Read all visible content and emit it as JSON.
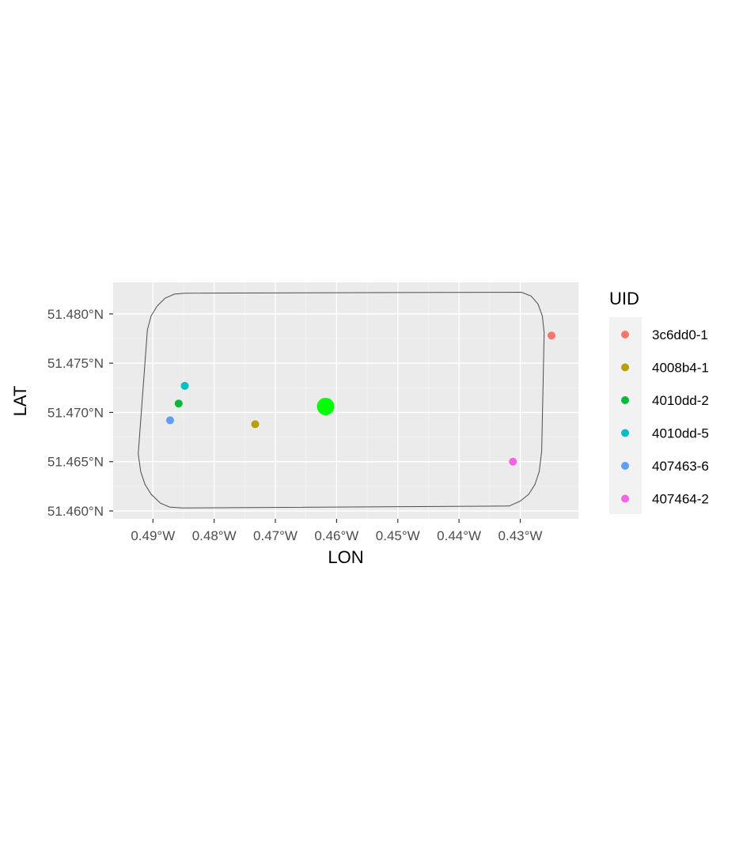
{
  "chart_data": {
    "type": "scatter",
    "xlabel": "LON",
    "ylabel": "LAT",
    "xlim": [
      -0.4965,
      -0.4205
    ],
    "ylim": [
      51.4592,
      51.4832
    ],
    "x_ticks": [
      -0.49,
      -0.48,
      -0.47,
      -0.46,
      -0.45,
      -0.44,
      -0.43
    ],
    "x_tick_labels": [
      "0.49°W",
      "0.48°W",
      "0.47°W",
      "0.46°W",
      "0.45°W",
      "0.44°W",
      "0.43°W"
    ],
    "y_ticks": [
      51.46,
      51.465,
      51.47,
      51.475,
      51.48
    ],
    "y_tick_labels": [
      "51.460°N",
      "51.465°N",
      "51.470°N",
      "51.475°N",
      "51.480°N"
    ],
    "grid": true,
    "legend_title": "UID",
    "legend_position": "right",
    "series": [
      {
        "name": "3c6dd0-1",
        "color": "#F8766D",
        "x": -0.4249,
        "y": 51.4778
      },
      {
        "name": "4008b4-1",
        "color": "#B79F00",
        "x": -0.4733,
        "y": 51.4688
      },
      {
        "name": "4010dd-2",
        "color": "#00BA38",
        "x": -0.4858,
        "y": 51.4709
      },
      {
        "name": "4010dd-5",
        "color": "#00BFC4",
        "x": -0.4848,
        "y": 51.4727
      },
      {
        "name": "407463-6",
        "color": "#619CFF",
        "x": -0.4872,
        "y": 51.4692
      },
      {
        "name": "407464-2",
        "color": "#F564E3",
        "x": -0.4312,
        "y": 51.465
      }
    ],
    "centroid": {
      "x": -0.4618,
      "y": 51.4706,
      "color": "#00FF00"
    },
    "boundary": [
      [
        -0.4848,
        51.4821
      ],
      [
        -0.4298,
        51.4822
      ],
      [
        -0.4282,
        51.4818
      ],
      [
        -0.4271,
        51.481
      ],
      [
        -0.4264,
        51.4798
      ],
      [
        -0.4261,
        51.4781
      ],
      [
        -0.4265,
        51.4661
      ],
      [
        -0.4269,
        51.464
      ],
      [
        -0.4276,
        51.4627
      ],
      [
        -0.4286,
        51.4617
      ],
      [
        -0.43,
        51.461
      ],
      [
        -0.4318,
        51.4605
      ],
      [
        -0.4852,
        51.4603
      ],
      [
        -0.4873,
        51.4604
      ],
      [
        -0.4888,
        51.4608
      ],
      [
        -0.4903,
        51.4617
      ],
      [
        -0.4913,
        51.4627
      ],
      [
        -0.492,
        51.464
      ],
      [
        -0.4924,
        51.4658
      ],
      [
        -0.4909,
        51.4784
      ],
      [
        -0.4903,
        51.4798
      ],
      [
        -0.4893,
        51.4808
      ],
      [
        -0.488,
        51.4816
      ],
      [
        -0.4865,
        51.482
      ]
    ]
  }
}
